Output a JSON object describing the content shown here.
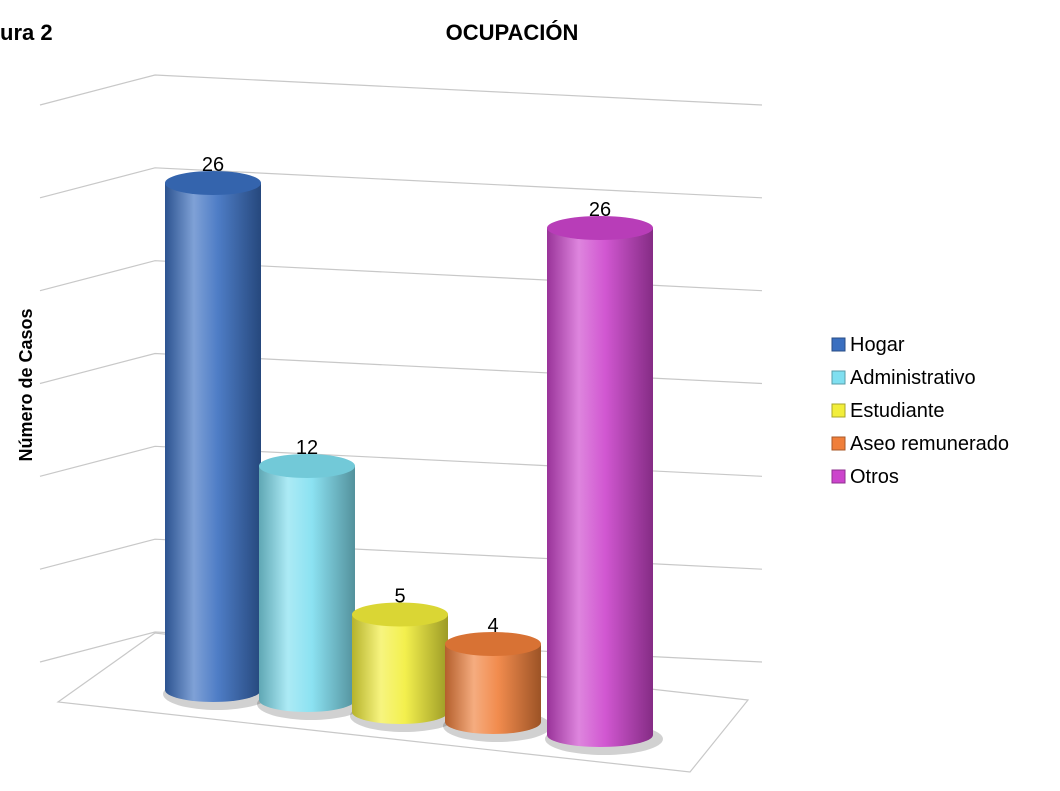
{
  "chart_data": {
    "type": "bar3d",
    "figure_label": "ura 2",
    "title": "OCUPACIÓN",
    "y_label": "Número de Casos",
    "categories": [
      "Hogar",
      "Administrativo",
      "Estudiante",
      "Aseo remunerado",
      "Otros"
    ],
    "values": [
      26,
      12,
      5,
      4,
      26
    ],
    "colors": [
      "#3a6fc0",
      "#7fdff0",
      "#f2ee3a",
      "#f07f3a",
      "#cc44cc"
    ],
    "ylim": [
      0,
      30
    ],
    "yticks": [
      0,
      5,
      10,
      15,
      20,
      25,
      30
    ],
    "grid": true,
    "legend": "right"
  }
}
